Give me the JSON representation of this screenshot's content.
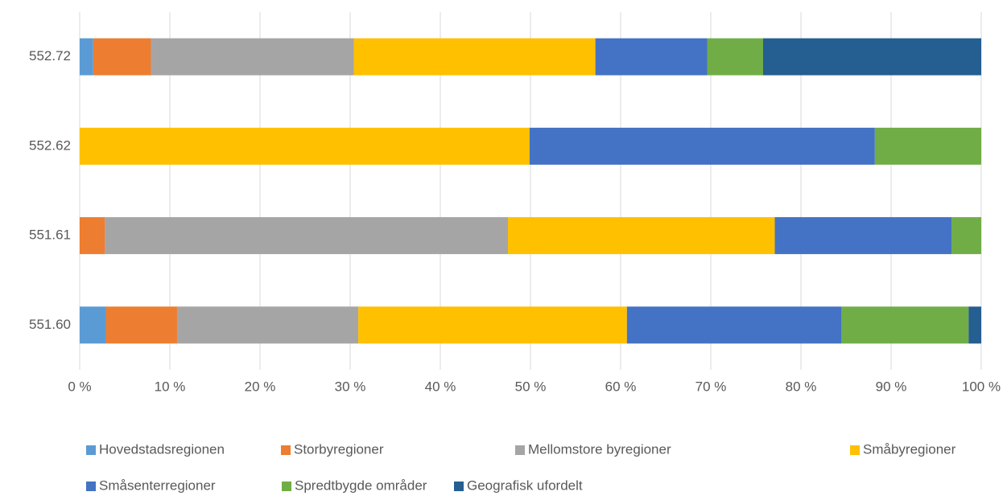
{
  "chart_data": {
    "type": "stacked_bar_horizontal",
    "categories": [
      "551.60",
      "551.61",
      "552.62",
      "552.72"
    ],
    "series": [
      {
        "name": "Hovedstadsregionen",
        "color": "#5b9bd5",
        "values": [
          2.9,
          0,
          0,
          1.5
        ]
      },
      {
        "name": "Storbyregioner",
        "color": "#ed7d31",
        "values": [
          7.9,
          2.8,
          0,
          6.4
        ]
      },
      {
        "name": "Mellomstore byregioner",
        "color": "#a5a5a5",
        "values": [
          20.1,
          44.7,
          0,
          22.5
        ]
      },
      {
        "name": "Småbyregioner",
        "color": "#ffc000",
        "values": [
          29.8,
          29.6,
          49.9,
          26.8
        ]
      },
      {
        "name": "Småsenterregioner",
        "color": "#4472c4",
        "values": [
          23.8,
          19.6,
          38.3,
          12.4
        ]
      },
      {
        "name": "Spredtbygde områder",
        "color": "#70ad47",
        "values": [
          14.1,
          3.3,
          11.8,
          6.2
        ]
      },
      {
        "name": "Geografisk ufordelt",
        "color": "#255e91",
        "values": [
          1.4,
          0,
          0,
          24.2
        ]
      }
    ],
    "xlim": [
      0,
      100
    ],
    "xticks": [
      {
        "value": 0,
        "label": "0 %"
      },
      {
        "value": 10,
        "label": "10 %"
      },
      {
        "value": 20,
        "label": "20 %"
      },
      {
        "value": 30,
        "label": "30 %"
      },
      {
        "value": 40,
        "label": "40 %"
      },
      {
        "value": 50,
        "label": "50 %"
      },
      {
        "value": 60,
        "label": "60 %"
      },
      {
        "value": 70,
        "label": "70 %"
      },
      {
        "value": 80,
        "label": "80 %"
      },
      {
        "value": 90,
        "label": "90 %"
      },
      {
        "value": 100,
        "label": "100 %"
      }
    ],
    "grid": true,
    "legend": "bottom"
  }
}
